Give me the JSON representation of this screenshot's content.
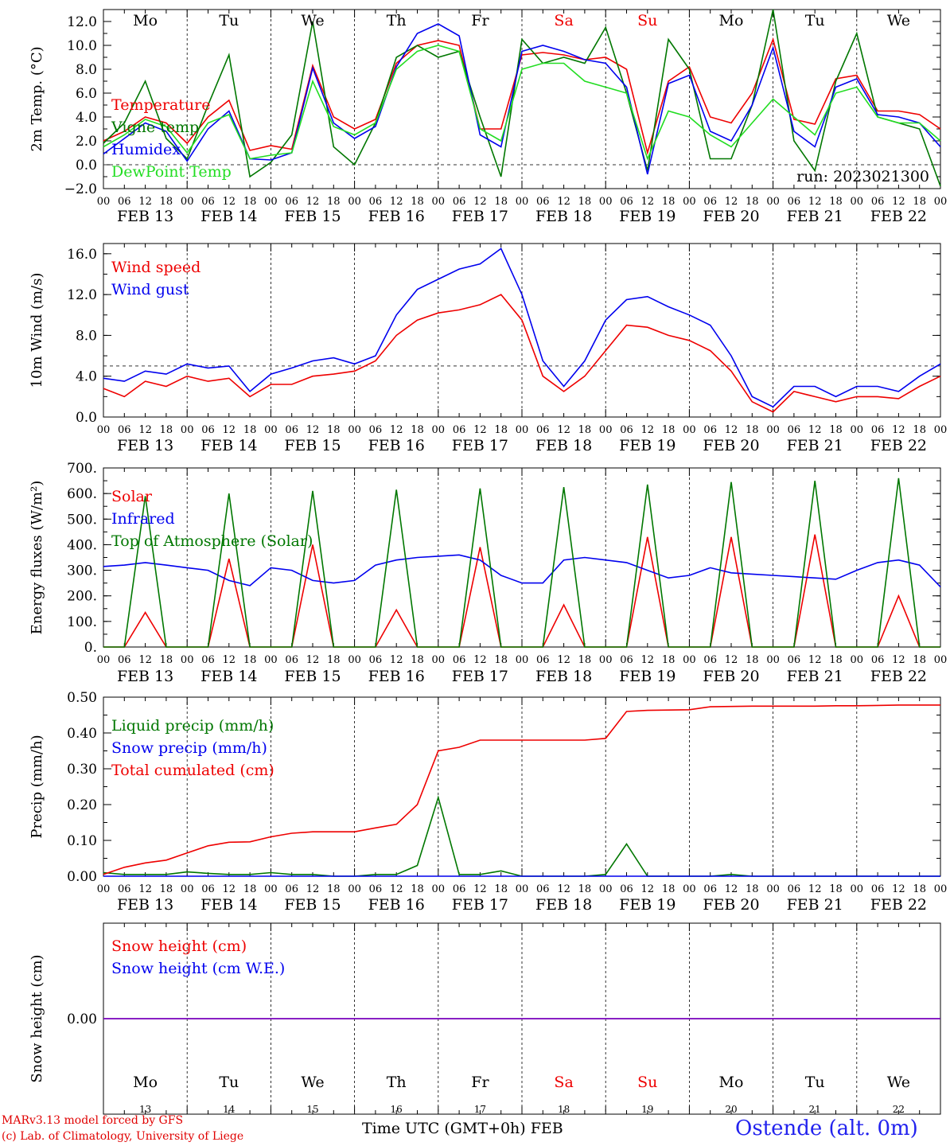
{
  "run_label": "run: 2023021300",
  "x_axis_title": "Time UTC (GMT+0h)",
  "month_label": "FEB",
  "station": "Ostende (alt. 0m)",
  "credits": [
    "MARv3.13 model forced by GFS",
    "(c) Lab. of Climatology, University of Liege"
  ],
  "date_labels": [
    "FEB 13",
    "FEB 14",
    "FEB 15",
    "FEB 16",
    "FEB 17",
    "FEB 18",
    "FEB 19",
    "FEB 20",
    "FEB 21",
    "FEB 22"
  ],
  "day_numbers": [
    "13",
    "14",
    "15",
    "16",
    "17",
    "18",
    "19",
    "20",
    "21",
    "22"
  ],
  "weekdays": [
    "Mo",
    "Tu",
    "We",
    "Th",
    "Fr",
    "Sa",
    "Su",
    "Mo",
    "Tu",
    "We"
  ],
  "weekend_days": [
    "Sa",
    "Su"
  ],
  "hour_ticks": [
    "00",
    "06",
    "12",
    "18"
  ],
  "colors": {
    "red": "#ee0000",
    "darkgreen": "#007700",
    "blue": "#0000ee",
    "lightgreen": "#22dd22",
    "purple": "#7700bb",
    "weekend": "#ee0000"
  },
  "chart_data": [
    {
      "type": "line",
      "ylabel": "2m Temp. (°C)",
      "ylim": [
        -2,
        13
      ],
      "yticks": [
        "12.0",
        "10.0",
        "8.0",
        "6.0",
        "4.0",
        "2.0",
        "0.0",
        "−2.0"
      ],
      "reference_line": 0,
      "x_hours": [
        0,
        6,
        12,
        18,
        24,
        30,
        36,
        42,
        48,
        54,
        60,
        66,
        72,
        78,
        84,
        90,
        96,
        102,
        108,
        114,
        120,
        126,
        132,
        138,
        144,
        150,
        156,
        162,
        168,
        174,
        180,
        186,
        192,
        198,
        204,
        210,
        216,
        222,
        228,
        234,
        240
      ],
      "series": [
        {
          "name": "Temperature",
          "color": "#ee0000",
          "values": [
            2.0,
            2.8,
            4.0,
            3.5,
            1.8,
            4.0,
            5.4,
            1.2,
            1.6,
            1.3,
            8.3,
            4.0,
            3.0,
            3.8,
            8.5,
            10.0,
            10.4,
            10.0,
            3.0,
            3.0,
            9.2,
            9.4,
            9.2,
            8.8,
            9.0,
            8.0,
            1.0,
            7.0,
            8.2,
            4.0,
            3.5,
            6.0,
            10.5,
            3.8,
            3.4,
            7.2,
            7.5,
            4.5,
            4.5,
            4.2,
            3.0
          ]
        },
        {
          "name": "Vigne temp",
          "color": "#007700",
          "values": [
            1.8,
            3.5,
            7.0,
            2.2,
            0.5,
            5.0,
            9.2,
            -1.0,
            0.2,
            2.5,
            12.0,
            1.5,
            0.0,
            3.5,
            9.0,
            10.0,
            9.0,
            9.5,
            4.0,
            -1.0,
            10.5,
            8.5,
            9.0,
            8.5,
            11.5,
            6.0,
            -0.5,
            10.5,
            8.0,
            0.5,
            0.5,
            5.0,
            13.0,
            2.0,
            -0.5,
            7.0,
            11.0,
            4.0,
            3.5,
            3.0,
            -1.8
          ]
        },
        {
          "name": "Humidex",
          "color": "#0000ee",
          "values": [
            0.9,
            2.2,
            3.5,
            2.8,
            0.3,
            3.0,
            4.5,
            0.5,
            0.4,
            1.0,
            8.1,
            3.5,
            2.2,
            3.2,
            8.2,
            11.0,
            11.8,
            10.8,
            2.5,
            1.5,
            9.5,
            10.0,
            9.5,
            8.8,
            8.5,
            6.5,
            -0.8,
            6.8,
            7.5,
            2.8,
            2.0,
            5.0,
            9.8,
            2.8,
            1.5,
            6.5,
            7.2,
            4.2,
            4.0,
            3.5,
            1.5
          ]
        },
        {
          "name": "DewPoint Temp",
          "color": "#22dd22",
          "values": [
            1.5,
            2.5,
            3.8,
            3.2,
            1.0,
            3.5,
            4.2,
            0.5,
            0.8,
            1.0,
            7.0,
            3.2,
            2.5,
            3.5,
            8.0,
            9.5,
            10.0,
            9.5,
            3.0,
            2.0,
            8.0,
            8.5,
            8.5,
            7.0,
            6.5,
            6.0,
            0.5,
            4.5,
            4.0,
            2.5,
            1.5,
            3.5,
            5.5,
            4.0,
            2.5,
            6.0,
            6.5,
            4.0,
            3.5,
            3.5,
            2.0
          ]
        }
      ]
    },
    {
      "type": "line",
      "ylabel": "10m Wind (m/s)",
      "ylim": [
        0,
        17
      ],
      "yticks": [
        "16.0",
        "12.0",
        "8.0",
        "4.0",
        "0.0"
      ],
      "reference_line": 5,
      "x_hours": [
        0,
        6,
        12,
        18,
        24,
        30,
        36,
        42,
        48,
        54,
        60,
        66,
        72,
        78,
        84,
        90,
        96,
        102,
        108,
        114,
        120,
        126,
        132,
        138,
        144,
        150,
        156,
        162,
        168,
        174,
        180,
        186,
        192,
        198,
        204,
        210,
        216,
        222,
        228,
        234,
        240
      ],
      "series": [
        {
          "name": "Wind speed",
          "color": "#ee0000",
          "values": [
            2.8,
            2.0,
            3.5,
            3.0,
            4.0,
            3.5,
            3.8,
            2.0,
            3.2,
            3.2,
            4.0,
            4.2,
            4.5,
            5.5,
            8.0,
            9.5,
            10.2,
            10.5,
            11.0,
            12.0,
            9.5,
            4.0,
            2.5,
            4.0,
            6.5,
            9.0,
            8.8,
            8.0,
            7.5,
            6.5,
            4.5,
            1.5,
            0.5,
            2.5,
            2.0,
            1.5,
            2.0,
            2.0,
            1.8,
            3.0,
            4.0
          ]
        },
        {
          "name": "Wind gust",
          "color": "#0000ee",
          "values": [
            3.8,
            3.5,
            4.5,
            4.2,
            5.2,
            4.8,
            5.0,
            2.5,
            4.2,
            4.8,
            5.5,
            5.8,
            5.2,
            6.0,
            10.0,
            12.5,
            13.5,
            14.5,
            15.0,
            16.5,
            12.0,
            5.5,
            3.0,
            5.5,
            9.5,
            11.5,
            11.8,
            10.8,
            10.0,
            9.0,
            6.0,
            2.0,
            1.0,
            3.0,
            3.0,
            2.0,
            3.0,
            3.0,
            2.5,
            4.0,
            5.2
          ]
        }
      ]
    },
    {
      "type": "line",
      "ylabel": "Energy fluxes (W/m²)",
      "ylim": [
        0,
        700
      ],
      "yticks": [
        "700.",
        "600.",
        "500.",
        "400.",
        "300.",
        "200.",
        "100.",
        "0."
      ],
      "x_hours": [
        0,
        6,
        12,
        18,
        24,
        30,
        36,
        42,
        48,
        54,
        60,
        66,
        72,
        78,
        84,
        90,
        96,
        102,
        108,
        114,
        120,
        126,
        132,
        138,
        144,
        150,
        156,
        162,
        168,
        174,
        180,
        186,
        192,
        198,
        204,
        210,
        216,
        222,
        228,
        234,
        240
      ],
      "series": [
        {
          "name": "Solar",
          "color": "#ee0000",
          "values": [
            0,
            0,
            135,
            0,
            0,
            0,
            345,
            0,
            0,
            0,
            400,
            0,
            0,
            0,
            145,
            0,
            0,
            0,
            390,
            0,
            0,
            0,
            165,
            0,
            0,
            0,
            430,
            0,
            0,
            0,
            430,
            0,
            0,
            0,
            440,
            0,
            0,
            0,
            200,
            0,
            0
          ]
        },
        {
          "name": "Infrared",
          "color": "#0000ee",
          "values": [
            315,
            320,
            330,
            320,
            310,
            300,
            260,
            240,
            310,
            300,
            260,
            250,
            260,
            320,
            340,
            350,
            355,
            360,
            340,
            280,
            250,
            250,
            340,
            350,
            340,
            330,
            300,
            270,
            280,
            310,
            290,
            285,
            280,
            275,
            270,
            265,
            300,
            330,
            340,
            320,
            235
          ]
        },
        {
          "name": "Top of Atmosphere (Solar)",
          "color": "#007700",
          "values": [
            0,
            0,
            590,
            0,
            0,
            0,
            600,
            0,
            0,
            0,
            610,
            0,
            0,
            0,
            615,
            0,
            0,
            0,
            620,
            0,
            0,
            0,
            625,
            0,
            0,
            0,
            635,
            0,
            0,
            0,
            645,
            0,
            0,
            0,
            650,
            0,
            0,
            0,
            660,
            0,
            0
          ]
        }
      ]
    },
    {
      "type": "line",
      "ylabel": "Precip (mm/h)",
      "ylim": [
        0,
        0.5
      ],
      "yticks": [
        "0.50",
        "0.40",
        "0.30",
        "0.20",
        "0.10",
        "0.00"
      ],
      "x_hours": [
        0,
        6,
        12,
        18,
        24,
        30,
        36,
        42,
        48,
        54,
        60,
        66,
        72,
        78,
        84,
        90,
        96,
        102,
        108,
        114,
        120,
        126,
        132,
        138,
        144,
        150,
        156,
        162,
        168,
        174,
        180,
        186,
        192,
        198,
        204,
        210,
        216,
        222,
        228,
        234,
        240
      ],
      "series": [
        {
          "name": "Liquid precip (mm/h)",
          "color": "#007700",
          "values": [
            0.01,
            0.005,
            0.005,
            0.005,
            0.012,
            0.008,
            0.005,
            0.005,
            0.01,
            0.005,
            0.005,
            0.0,
            0.0,
            0.005,
            0.005,
            0.03,
            0.22,
            0.005,
            0.005,
            0.015,
            0.0,
            0.0,
            0.0,
            0.0,
            0.005,
            0.09,
            0.0,
            0.0,
            0.0,
            0.0,
            0.005,
            0.0,
            0.0,
            0.0,
            0.0,
            0.0,
            0.0,
            0.0,
            0.0,
            0.0,
            0.0
          ]
        },
        {
          "name": "Snow precip (mm/h)",
          "color": "#0000ee",
          "values": [
            0,
            0,
            0,
            0,
            0,
            0,
            0,
            0,
            0,
            0,
            0,
            0,
            0,
            0,
            0,
            0,
            0,
            0,
            0,
            0,
            0,
            0,
            0,
            0,
            0,
            0,
            0,
            0,
            0,
            0,
            0,
            0,
            0,
            0,
            0,
            0,
            0,
            0,
            0,
            0,
            0
          ]
        },
        {
          "name": "Total cumulated (cm)",
          "color": "#ee0000",
          "values": [
            0.005,
            0.025,
            0.037,
            0.045,
            0.065,
            0.085,
            0.095,
            0.096,
            0.11,
            0.12,
            0.124,
            0.124,
            0.124,
            0.135,
            0.145,
            0.2,
            0.35,
            0.36,
            0.38,
            0.38,
            0.38,
            0.38,
            0.38,
            0.38,
            0.385,
            0.46,
            0.463,
            0.464,
            0.465,
            0.473,
            0.474,
            0.475,
            0.475,
            0.475,
            0.475,
            0.476,
            0.476,
            0.477,
            0.478,
            0.478,
            0.478
          ]
        }
      ]
    },
    {
      "type": "line",
      "ylabel": "Snow height (cm)",
      "yticks": [
        "0.00"
      ],
      "x_hours": [
        0,
        240
      ],
      "series": [
        {
          "name": "Snow height (cm)",
          "color": "#ee0000",
          "values": [
            0,
            0
          ]
        },
        {
          "name": "Snow height (cm W.E.)",
          "color": "#0000ee",
          "values": [
            0,
            0
          ]
        }
      ]
    }
  ]
}
